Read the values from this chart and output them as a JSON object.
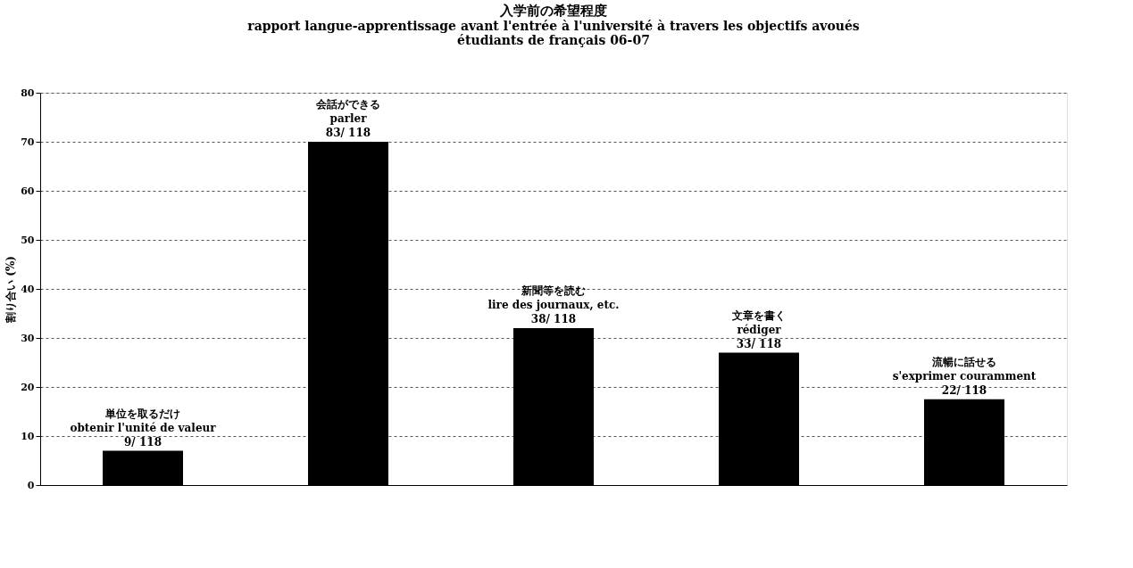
{
  "chart_data": {
    "type": "bar",
    "title": "入学前の希望程度",
    "subtitle": "rapport langue-apprentissage avant l'entrée à l'université à travers les objectifs avoués\nétudiants de français 06-07",
    "ylabel": "割り合い (%)",
    "categories": [
      "単位を取るだけ\nobtenir l'unité de valeur",
      "会話ができる\nparler",
      "新聞等を読む\nlire des journaux, etc.",
      "文章を書く\nrédiger",
      "流暢に話せる\ns'exprimer couramment"
    ],
    "values": [
      7,
      70,
      32,
      27,
      17.5
    ],
    "value_labels": [
      "9/ 118",
      "83/ 118",
      "38/ 118",
      "33/ 118",
      "22/ 118"
    ],
    "color": "#000000",
    "ylim": [
      0,
      80
    ],
    "yticks": [
      0,
      10,
      20,
      30,
      40,
      50,
      60,
      70,
      80
    ],
    "grid": "y",
    "tick_labels": "y"
  }
}
